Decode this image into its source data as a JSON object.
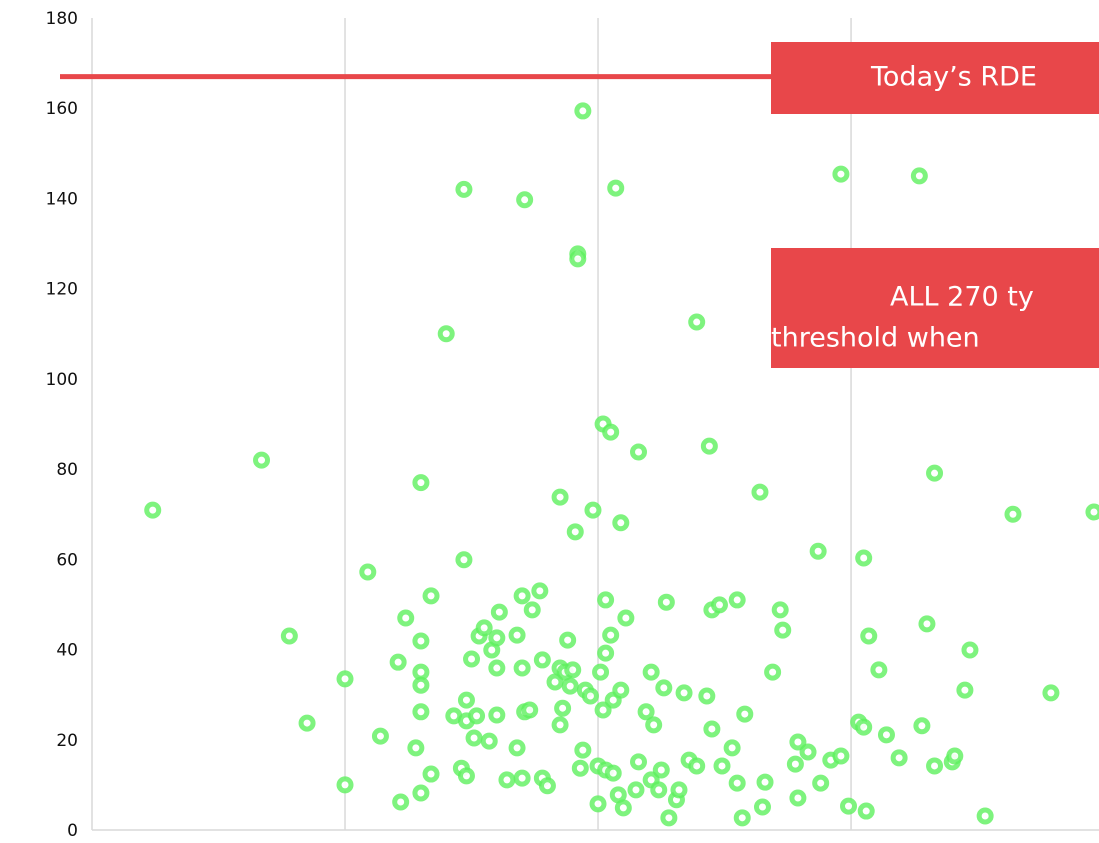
{
  "chart_data": {
    "type": "scatter",
    "color": "#5ef05e",
    "xlim": [
      0,
      3.98
    ],
    "xticks": [
      0,
      1,
      2,
      3
    ],
    "ylim": [
      0,
      180
    ],
    "yticks": [
      0,
      20,
      40,
      60,
      80,
      100,
      120,
      140,
      160,
      180
    ],
    "grid": "x",
    "x": [
      0.24,
      0.67,
      0.78,
      0.85,
      1.0,
      1.0,
      1.09,
      1.14,
      1.21,
      1.22,
      1.24,
      1.28,
      1.3,
      1.3,
      1.3,
      1.3,
      1.3,
      1.3,
      1.34,
      1.34,
      1.4,
      1.43,
      1.46,
      1.47,
      1.47,
      1.48,
      1.48,
      1.48,
      1.5,
      1.51,
      1.52,
      1.53,
      1.55,
      1.57,
      1.58,
      1.6,
      1.6,
      1.6,
      1.61,
      1.64,
      1.68,
      1.68,
      1.7,
      1.7,
      1.7,
      1.71,
      1.71,
      1.73,
      1.74,
      1.77,
      1.78,
      1.78,
      1.8,
      1.83,
      1.85,
      1.85,
      1.85,
      1.86,
      1.87,
      1.88,
      1.89,
      1.9,
      1.91,
      1.92,
      1.92,
      1.93,
      1.94,
      1.94,
      1.95,
      1.97,
      1.98,
      2.0,
      2.0,
      2.01,
      2.02,
      2.02,
      2.03,
      2.03,
      2.03,
      2.05,
      2.05,
      2.06,
      2.06,
      2.07,
      2.08,
      2.09,
      2.09,
      2.1,
      2.11,
      2.15,
      2.16,
      2.16,
      2.19,
      2.21,
      2.21,
      2.22,
      2.24,
      2.25,
      2.26,
      2.27,
      2.28,
      2.31,
      2.32,
      2.34,
      2.36,
      2.39,
      2.39,
      2.43,
      2.44,
      2.45,
      2.45,
      2.48,
      2.49,
      2.53,
      2.55,
      2.55,
      2.57,
      2.58,
      2.64,
      2.65,
      2.66,
      2.69,
      2.72,
      2.73,
      2.78,
      2.79,
      2.79,
      2.83,
      2.87,
      2.88,
      2.92,
      2.96,
      2.96,
      2.99,
      3.03,
      3.05,
      3.05,
      3.06,
      3.07,
      3.11,
      3.14,
      3.19,
      3.27,
      3.28,
      3.3,
      3.33,
      3.33,
      3.4,
      3.41,
      3.45,
      3.47,
      3.53,
      3.64,
      3.79,
      3.96
    ],
    "values": [
      70.9,
      82,
      43,
      23.7,
      10,
      33.5,
      57.2,
      20.8,
      37.2,
      6.2,
      47,
      18.2,
      77,
      41.9,
      35,
      32.1,
      26.2,
      8.2,
      12.4,
      51.9,
      110,
      25.3,
      13.7,
      142,
      59.9,
      28.8,
      24.2,
      12,
      37.9,
      20.4,
      25.3,
      43,
      44.8,
      19.7,
      39.9,
      42.6,
      35.9,
      25.5,
      48.3,
      11.1,
      18.2,
      43.2,
      11.5,
      35.9,
      51.9,
      26.2,
      139.7,
      26.6,
      48.8,
      53,
      37.7,
      11.5,
      9.8,
      32.8,
      73.8,
      23.3,
      35.9,
      27,
      35,
      42.1,
      31.9,
      35.5,
      66.1,
      127.7,
      126.6,
      13.7,
      17.7,
      159.4,
      31,
      29.7,
      70.9,
      14.2,
      5.8,
      35,
      26.6,
      90,
      13.3,
      39.2,
      51,
      88.2,
      43.2,
      28.8,
      12.6,
      142.3,
      7.8,
      31,
      68.1,
      4.9,
      47,
      8.9,
      15.1,
      83.8,
      26.2,
      11.1,
      35,
      23.3,
      8.9,
      13.3,
      31.5,
      50.5,
      2.7,
      6.7,
      8.9,
      30.4,
      15.5,
      112.6,
      14.2,
      29.7,
      85.1,
      48.8,
      22.4,
      49.9,
      14.2,
      18.2,
      51,
      10.4,
      2.7,
      25.7,
      74.9,
      5.1,
      10.6,
      35,
      48.8,
      44.3,
      14.6,
      19.5,
      7.1,
      17.3,
      61.8,
      10.4,
      15.5,
      16.4,
      145.4,
      5.3,
      23.9,
      60.3,
      22.8,
      4.2,
      43,
      35.5,
      21.1,
      16,
      145,
      23.1,
      45.7,
      79.1,
      14.2,
      15.1,
      16.4,
      31,
      39.9,
      3.1,
      70,
      30.4,
      70.5
    ],
    "hline": {
      "value": 167,
      "color": "#e8474a"
    },
    "annotations": [
      {
        "lines": [
          "Today’s RDE"
        ],
        "color": "#e8474a"
      },
      {
        "lines": [
          "ALL 270 ty",
          "threshold when"
        ],
        "color": "#e8474a"
      }
    ]
  }
}
